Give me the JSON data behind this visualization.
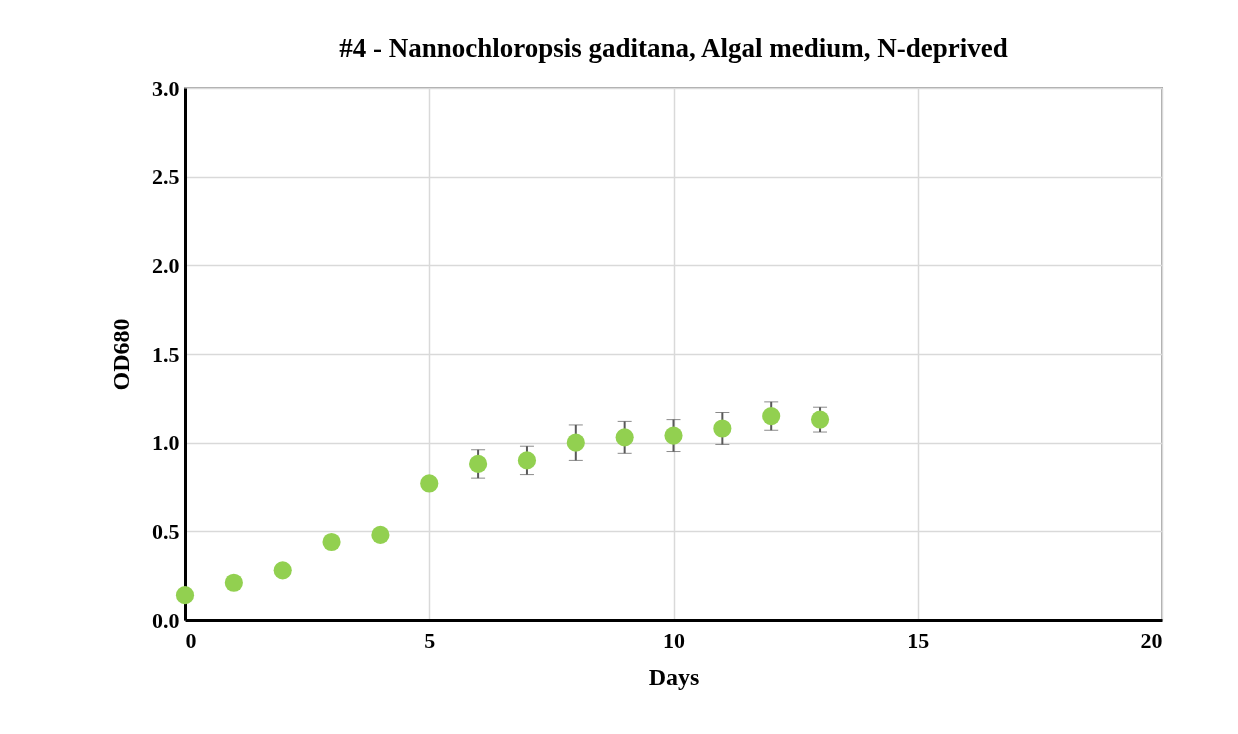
{
  "chart_data": {
    "type": "scatter",
    "title": "#4 - Nannochloropsis gaditana, Algal medium, N-deprived",
    "xlabel": "Days",
    "ylabel": "OD680",
    "x": [
      0,
      1,
      2,
      3,
      4,
      5,
      6,
      7,
      8,
      9,
      10,
      11,
      12,
      13
    ],
    "series": [
      {
        "color": "#92d050",
        "values": [
          0.14,
          0.21,
          0.28,
          0.44,
          0.48,
          0.77,
          0.88,
          0.9,
          1.0,
          1.03,
          1.04,
          1.08,
          1.15,
          1.13
        ],
        "errors": [
          null,
          null,
          null,
          null,
          null,
          null,
          0.08,
          0.08,
          0.1,
          0.09,
          0.09,
          0.09,
          0.08,
          0.07
        ]
      }
    ],
    "xlim": [
      0,
      20
    ],
    "xticks": [
      0,
      5,
      10,
      15,
      20
    ],
    "ylim": [
      0,
      3
    ],
    "yticks": [
      {
        "value": 0,
        "label": "0.0"
      },
      {
        "value": 0.5,
        "label": "0.5"
      },
      {
        "value": 1,
        "label": "1.0"
      },
      {
        "value": 1.5,
        "label": "1.5"
      },
      {
        "value": 2,
        "label": "2.0"
      },
      {
        "value": 2.5,
        "label": "2.5"
      },
      {
        "value": 3,
        "label": "3.0"
      }
    ],
    "grid": true,
    "marker": "circle"
  }
}
